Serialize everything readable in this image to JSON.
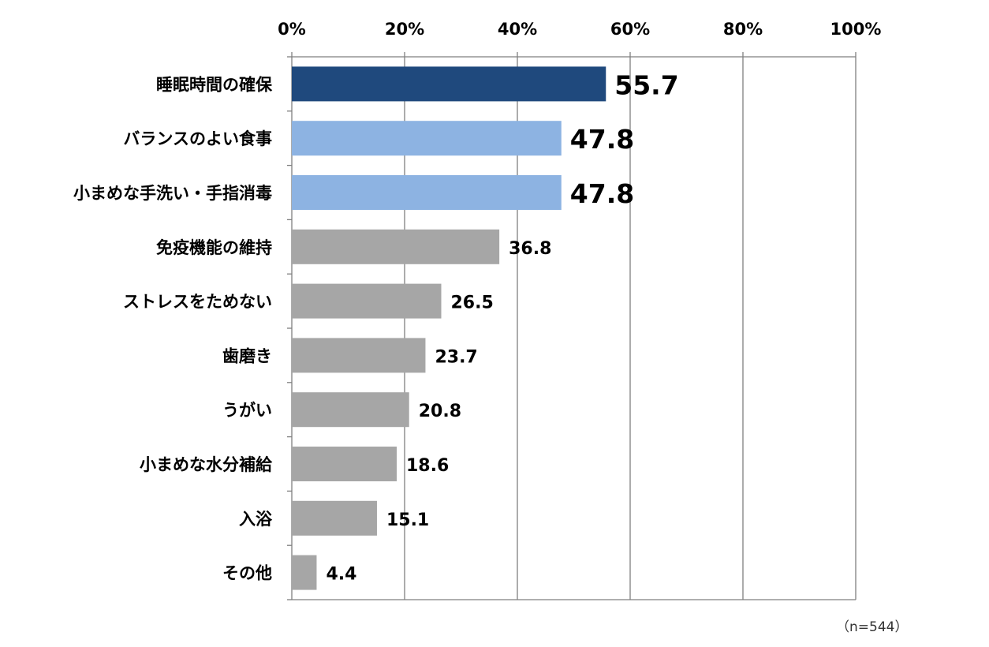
{
  "chart_data": {
    "type": "bar",
    "orientation": "horizontal",
    "categories": [
      "睡眠時間の確保",
      "バランスのよい食事",
      "小まめな手洗い・手指消毒",
      "免疫機能の維持",
      "ストレスをためない",
      "歯磨き",
      "うがい",
      "小まめな水分補給",
      "入浴",
      "その他"
    ],
    "values": [
      55.7,
      47.8,
      47.8,
      36.8,
      26.5,
      23.7,
      20.8,
      18.6,
      15.1,
      4.4
    ],
    "value_labels": [
      "55.7",
      "47.8",
      "47.8",
      "36.8",
      "26.5",
      "23.7",
      "20.8",
      "18.6",
      "15.1",
      "4.4"
    ],
    "bar_colors": [
      "#1f497d",
      "#8db3e2",
      "#8db3e2",
      "#a6a6a6",
      "#a6a6a6",
      "#a6a6a6",
      "#a6a6a6",
      "#a6a6a6",
      "#a6a6a6",
      "#a6a6a6"
    ],
    "xlim": [
      0,
      100
    ],
    "x_ticks": [
      0,
      20,
      40,
      60,
      80,
      100
    ],
    "x_tick_labels": [
      "0%",
      "20%",
      "40%",
      "60%",
      "80%",
      "100%"
    ],
    "x_axis_position": "top",
    "grid": true,
    "gridline_color": "#7f7f7f",
    "note": "（n=544）"
  }
}
